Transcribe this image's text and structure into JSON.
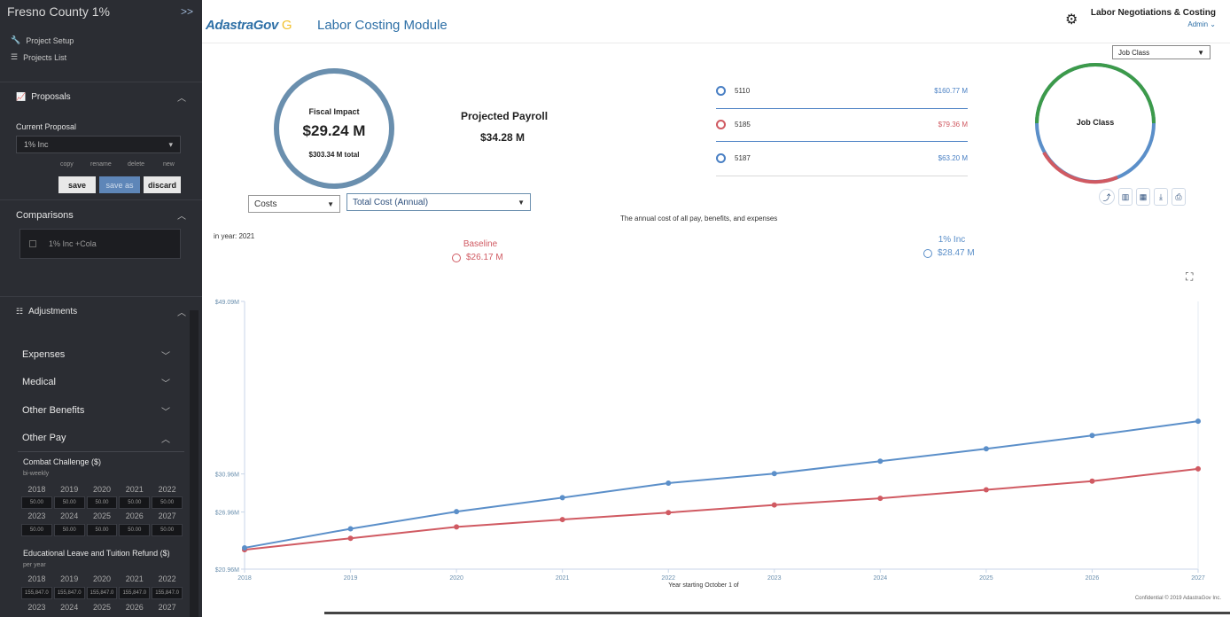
{
  "sidebar": {
    "project_name": "Fresno County 1%",
    "collapse_icon": "double-chevron-right-icon",
    "links": [
      {
        "label": "Project Setup",
        "icon": "wrench-icon"
      },
      {
        "label": "Projects List",
        "icon": "list-icon"
      }
    ],
    "proposals_label": "Proposals",
    "current_proposal_label": "Current Proposal",
    "current_proposal_value": "1% Inc",
    "mini_actions": [
      "copy",
      "rename",
      "delete",
      "new"
    ],
    "save_label": "save",
    "save_as_label": "save as",
    "discard_label": "discard",
    "comparisons_label": "Comparisons",
    "comparison_item": "1% Inc +Cola",
    "adjustments_label": "Adjustments",
    "accordions": [
      "Expenses",
      "Medical",
      "Other Benefits",
      "Other Pay"
    ],
    "combat_title": "Combat Challenge ($)",
    "combat_sub": "bi-weekly",
    "combat_years_1": [
      "2018",
      "2019",
      "2020",
      "2021",
      "2022"
    ],
    "combat_values_1": [
      "50.00",
      "50.00",
      "50.00",
      "50.00",
      "50.00"
    ],
    "combat_years_2": [
      "2023",
      "2024",
      "2025",
      "2026",
      "2027"
    ],
    "combat_values_2": [
      "50.00",
      "50.00",
      "50.00",
      "50.00",
      "50.00"
    ],
    "edu_title": "Educational Leave and Tuition Refund ($)",
    "edu_sub": "per year",
    "edu_years_1": [
      "2018",
      "2019",
      "2020",
      "2021",
      "2022"
    ],
    "edu_values_1": [
      "155,847.0",
      "155,847.0",
      "155,847.0",
      "155,847.0",
      "155,847.0"
    ],
    "edu_years_2": [
      "2023",
      "2024",
      "2025",
      "2026",
      "2027"
    ]
  },
  "header": {
    "logo_text": "AdastraGov",
    "logo_mark": "G",
    "module_title": "Labor Costing Module",
    "settings_icon": "gear-icon",
    "org_title": "Labor Negotiations & Costing",
    "user_label": "Admin ⌄"
  },
  "summary": {
    "fiscal_label": "Fiscal Impact",
    "fiscal_value": "$29.24 M",
    "fiscal_total": "$303.34 M total",
    "payroll_label": "Projected Payroll",
    "payroll_value": "$34.28 M"
  },
  "job_classes": [
    {
      "code": "5110",
      "value": "$160.77 M",
      "color": "#4a80c4"
    },
    {
      "code": "5185",
      "value": "$79.36 M",
      "color": "#d05a62"
    },
    {
      "code": "5187",
      "value": "$63.20 M",
      "color": "#4a80c4"
    }
  ],
  "job_class_select": "Job Class",
  "donut_label": "Job Class",
  "donut_colors": {
    "green": "#3c9a4a",
    "blue": "#5b8fc9",
    "red": "#d05a62"
  },
  "view_icons": [
    "line-chart-icon",
    "bar-chart-icon",
    "table-icon",
    "download-icon",
    "print-icon"
  ],
  "controls": {
    "category_select": "Costs",
    "metric_select": "Total Cost (Annual)",
    "caption": "The annual cost of all pay, benefits, and expenses",
    "in_year": "in year: 2021"
  },
  "legend": {
    "baseline_name": "Baseline",
    "baseline_value": "$26.17 M",
    "proposal_name": "1% Inc",
    "proposal_value": "$28.47 M"
  },
  "chart_data": {
    "type": "line",
    "x": [
      "2018",
      "2019",
      "2020",
      "2021",
      "2022",
      "2023",
      "2024",
      "2025",
      "2026",
      "2027"
    ],
    "xlabel": "Year starting October 1 of",
    "y_ticks": [
      "$20.96M",
      "$26.96M",
      "$30.96M",
      "$49.09M"
    ],
    "ylim": [
      20.96,
      49.09
    ],
    "series": [
      {
        "name": "Baseline",
        "color": "#d05a62",
        "values": [
          23.0,
          24.2,
          25.4,
          26.17,
          26.9,
          27.7,
          28.4,
          29.3,
          30.2,
          31.5
        ]
      },
      {
        "name": "1% Inc",
        "color": "#5b8fc9",
        "values": [
          23.2,
          25.2,
          27.0,
          28.47,
          30.0,
          31.0,
          32.3,
          33.6,
          35.0,
          36.5
        ]
      }
    ]
  },
  "footer_note": "Confidential © 2019 AdastraGov Inc."
}
